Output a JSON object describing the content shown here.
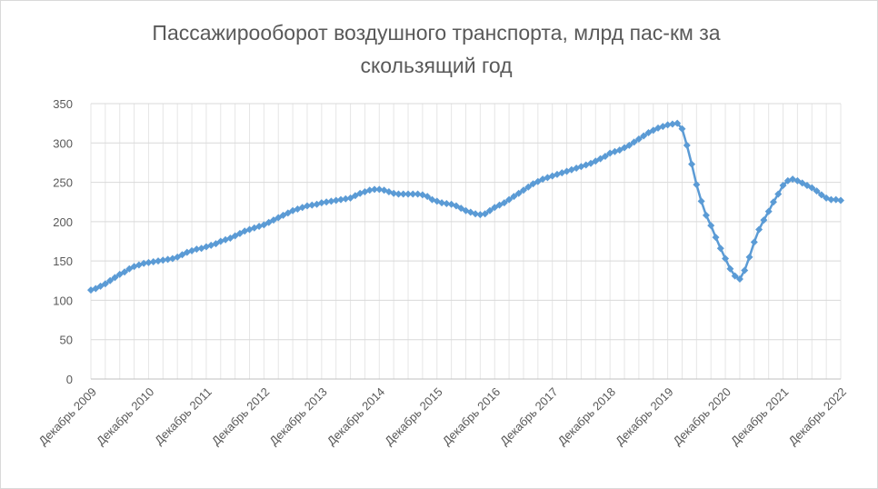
{
  "chart_data": {
    "type": "line",
    "title": "Пассажирооборот воздушного транспорта, млрд пас-км за скользящий год",
    "categories": [
      "Декабрь 2009",
      null,
      null,
      null,
      null,
      null,
      null,
      null,
      null,
      null,
      null,
      null,
      "Декабрь 2010",
      null,
      null,
      null,
      null,
      null,
      null,
      null,
      null,
      null,
      null,
      null,
      "Декабрь 2011",
      null,
      null,
      null,
      null,
      null,
      null,
      null,
      null,
      null,
      null,
      null,
      "Декабрь 2012",
      null,
      null,
      null,
      null,
      null,
      null,
      null,
      null,
      null,
      null,
      null,
      "Декабрь 2013",
      null,
      null,
      null,
      null,
      null,
      null,
      null,
      null,
      null,
      null,
      null,
      "Декабрь 2014",
      null,
      null,
      null,
      null,
      null,
      null,
      null,
      null,
      null,
      null,
      null,
      "Декабрь 2015",
      null,
      null,
      null,
      null,
      null,
      null,
      null,
      null,
      null,
      null,
      null,
      "Декабрь 2016",
      null,
      null,
      null,
      null,
      null,
      null,
      null,
      null,
      null,
      null,
      null,
      "Декабрь 2017",
      null,
      null,
      null,
      null,
      null,
      null,
      null,
      null,
      null,
      null,
      null,
      "Декабрь 2018",
      null,
      null,
      null,
      null,
      null,
      null,
      null,
      null,
      null,
      null,
      null,
      "Декабрь 2019",
      null,
      null,
      null,
      null,
      null,
      null,
      null,
      null,
      null,
      null,
      null,
      "Декабрь 2020",
      null,
      null,
      null,
      null,
      null,
      null,
      null,
      null,
      null,
      null,
      null,
      "Декабрь 2021",
      null,
      null,
      null,
      null,
      null,
      null,
      null,
      null,
      null,
      null,
      null,
      "Декабрь 2022"
    ],
    "values": [
      113,
      115,
      118,
      121,
      125,
      129,
      133,
      136,
      140,
      143,
      145,
      147,
      148,
      149,
      150,
      151,
      152,
      153,
      155,
      158,
      161,
      163,
      165,
      166,
      168,
      170,
      172,
      175,
      177,
      179,
      182,
      185,
      188,
      190,
      192,
      194,
      196,
      199,
      202,
      205,
      208,
      211,
      214,
      216,
      218,
      220,
      221,
      222,
      224,
      225,
      226,
      227,
      228,
      229,
      230,
      233,
      236,
      238,
      240,
      241,
      241,
      240,
      238,
      236,
      235,
      235,
      235,
      235,
      235,
      234,
      232,
      228,
      226,
      224,
      223,
      222,
      220,
      217,
      214,
      212,
      210,
      209,
      210,
      214,
      218,
      221,
      224,
      228,
      232,
      236,
      240,
      244,
      248,
      251,
      254,
      256,
      258,
      260,
      262,
      264,
      266,
      268,
      270,
      272,
      274,
      277,
      280,
      283,
      287,
      289,
      291,
      294,
      297,
      301,
      305,
      309,
      313,
      316,
      319,
      321,
      323,
      324,
      325,
      318,
      297,
      273,
      247,
      226,
      208,
      195,
      180,
      166,
      153,
      140,
      131,
      127,
      138,
      155,
      174,
      190,
      202,
      213,
      225,
      235,
      246,
      252,
      254,
      252,
      249,
      246,
      243,
      239,
      234,
      230,
      228,
      228,
      227
    ],
    "color": "#5b9bd5",
    "ylim": [
      0,
      350
    ],
    "yticks": [
      0,
      50,
      100,
      150,
      200,
      250,
      300,
      350
    ],
    "grid": true
  }
}
